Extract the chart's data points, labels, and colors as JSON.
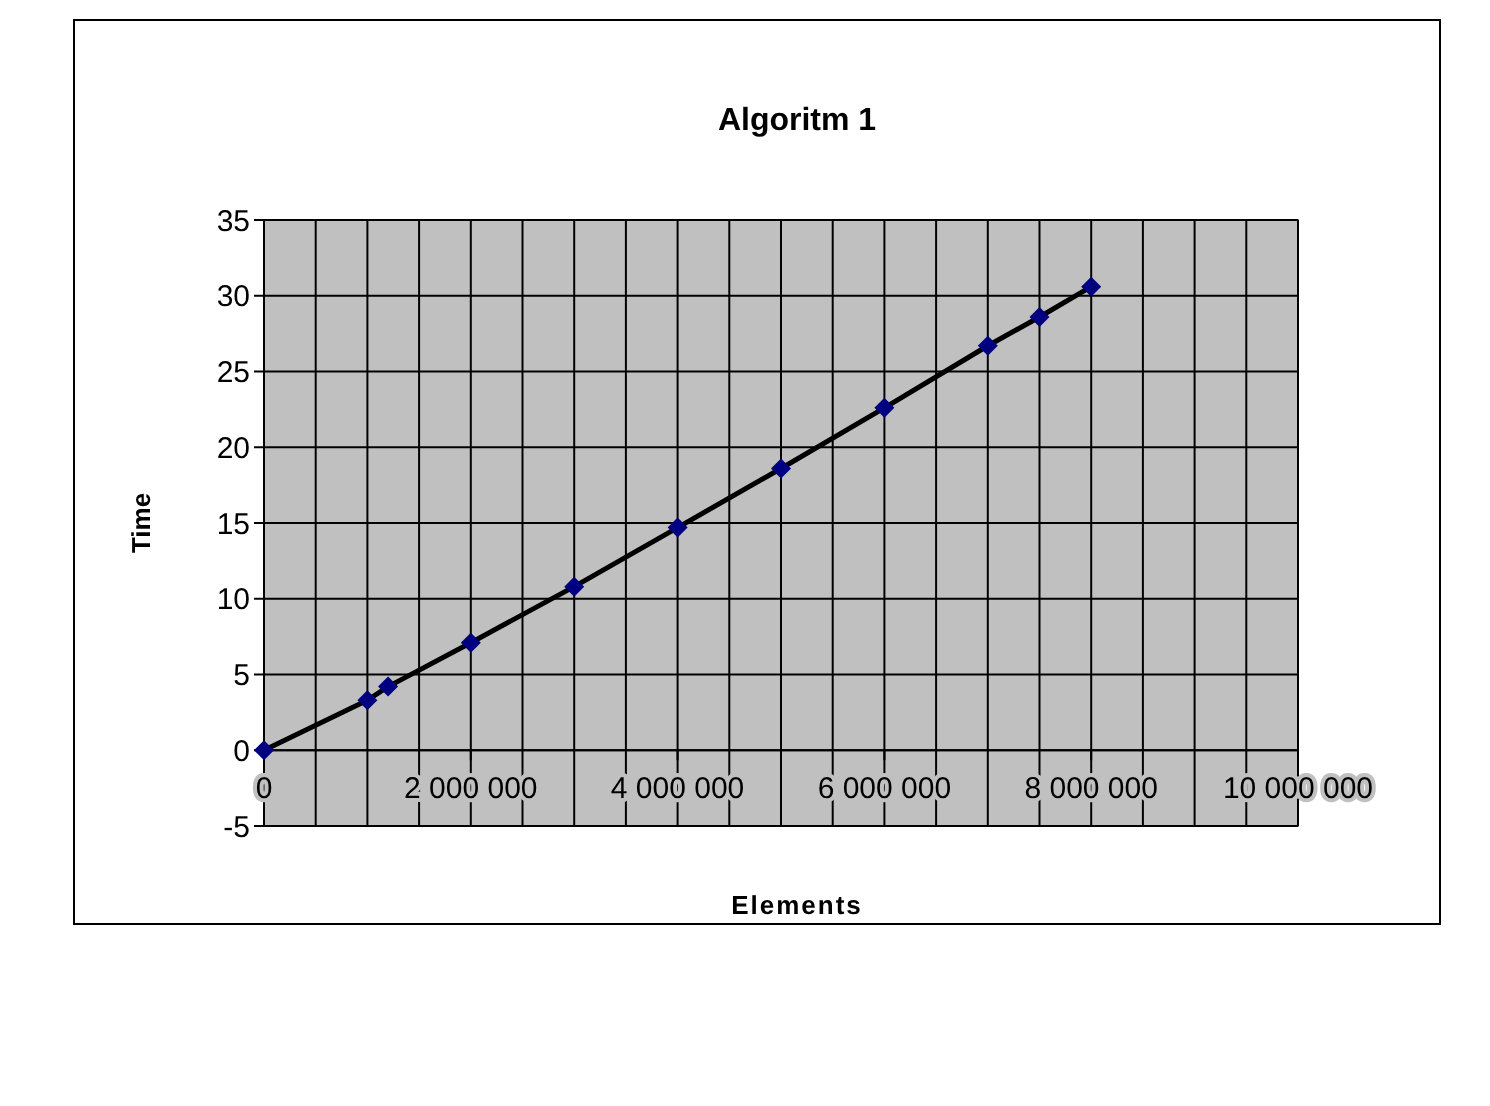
{
  "chart_data": {
    "type": "line",
    "title": "Algoritm 1",
    "xlabel": "Elements",
    "ylabel": "Time",
    "x": [
      0,
      1000000,
      1200000,
      2000000,
      3000000,
      4000000,
      5000000,
      6000000,
      7000000,
      7500000,
      8000000
    ],
    "series": [
      {
        "color": "#000080",
        "values": [
          0,
          3.3,
          4.2,
          7.1,
          10.8,
          14.7,
          18.6,
          22.6,
          26.7,
          28.6,
          30.6
        ]
      }
    ],
    "xlim": [
      0,
      10000000
    ],
    "xticks": [
      0,
      {
        "value": 500000,
        "label": null
      },
      {
        "value": 1000000,
        "label": null
      },
      {
        "value": 1500000,
        "label": null
      },
      {
        "value": 2000000,
        "label": "2 000 000"
      },
      {
        "value": 2500000,
        "label": null
      },
      {
        "value": 3000000,
        "label": null
      },
      {
        "value": 3500000,
        "label": null
      },
      {
        "value": 4000000,
        "label": "4 000 000"
      },
      {
        "value": 4500000,
        "label": null
      },
      {
        "value": 5000000,
        "label": null
      },
      {
        "value": 5500000,
        "label": null
      },
      {
        "value": 6000000,
        "label": "6 000 000"
      },
      {
        "value": 6500000,
        "label": null
      },
      {
        "value": 7000000,
        "label": null
      },
      {
        "value": 7500000,
        "label": null
      },
      {
        "value": 8000000,
        "label": "8 000 000"
      },
      {
        "value": 8500000,
        "label": null
      },
      {
        "value": 9000000,
        "label": null
      },
      {
        "value": 9500000,
        "label": null
      },
      {
        "value": 10000000,
        "label": "10 000 000"
      }
    ],
    "ylim": [
      -5,
      35
    ],
    "yticks": [
      -5,
      0,
      5,
      10,
      15,
      20,
      25,
      30,
      35
    ],
    "grid": true,
    "marker": "diamond",
    "line_style": "solid"
  }
}
